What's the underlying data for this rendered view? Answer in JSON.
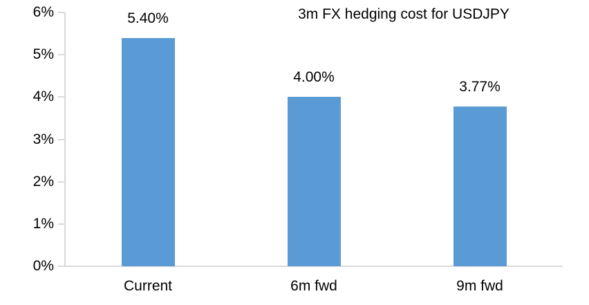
{
  "chart_data": {
    "type": "bar",
    "title": "3m FX hedging cost for USDJPY",
    "categories": [
      "Current",
      "6m fwd",
      "9m fwd"
    ],
    "values": [
      5.4,
      4.0,
      3.77
    ],
    "data_labels": [
      "5.40%",
      "4.00%",
      "3.77%"
    ],
    "xlabel": "",
    "ylabel": "",
    "ylim": [
      0,
      6
    ],
    "ytick_values": [
      0,
      1,
      2,
      3,
      4,
      5,
      6
    ],
    "ytick_labels": [
      "0%",
      "1%",
      "2%",
      "3%",
      "4%",
      "5%",
      "6%"
    ],
    "grid": false,
    "legend": "none",
    "bar_color": "#5B9BD5",
    "axis_color": "#D9D9D9",
    "text_color": "#000000"
  }
}
